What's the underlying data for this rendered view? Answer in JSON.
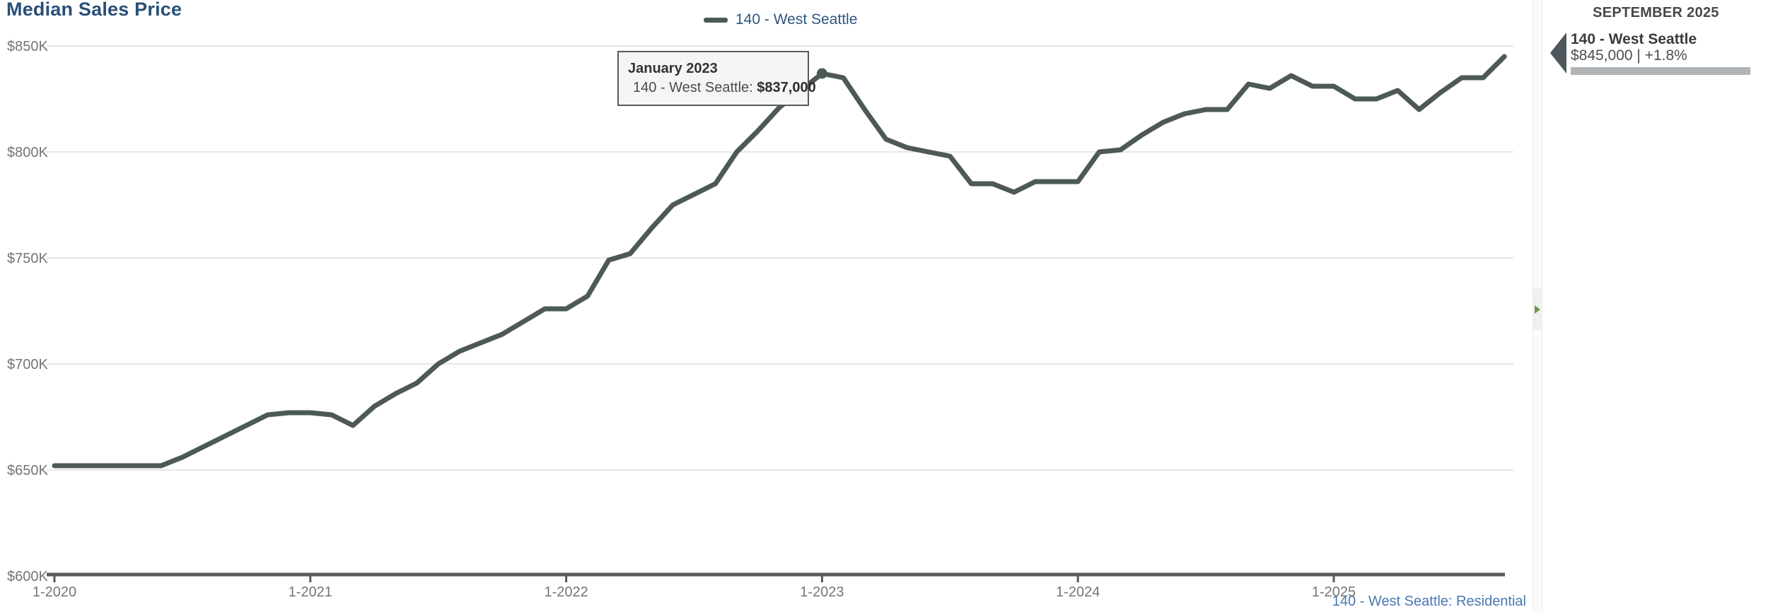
{
  "page": {
    "title": "Median Sales Price"
  },
  "legend": {
    "label": "140 - West Seattle",
    "swatch_icon": "line-swatch"
  },
  "tooltip": {
    "title": "January 2023",
    "series_label": "140 - West Seattle:",
    "value": "$837,000"
  },
  "side_panel": {
    "header": "SEPTEMBER 2025",
    "series_name": "140 - West Seattle",
    "value_line": "$845,000 | +1.8%",
    "arrow_icon": "left-triangle-icon",
    "bar_icon": "series-bar"
  },
  "divider": {
    "toggle_icon": "expand-right-icon"
  },
  "footer_link": {
    "label": "140 - West Seattle: Residential"
  },
  "colors": {
    "accent_blue": "#2a4f77",
    "legend_blue": "#2e567c",
    "link_blue": "#4a77b4",
    "line_color": "#4c5957",
    "grid_color": "#cccccc",
    "axis_color": "#595959",
    "label_gray": "#757575",
    "tooltip_bg": "#f5f5f3",
    "tooltip_border": "#58595a",
    "panel_bar_gray": "#b0b4b6",
    "toggle_green": "#6f9648"
  },
  "chart_data": {
    "type": "line",
    "title": "Median Sales Price",
    "xlabel": "",
    "ylabel": "",
    "grid": true,
    "legend_position": "top-center",
    "x_unit": "month",
    "x_range": "January 2020 to September 2025",
    "ylim": [
      600000,
      850000
    ],
    "y_ticks": [
      {
        "label": "$850K",
        "value": 850000
      },
      {
        "label": "$800K",
        "value": 800000
      },
      {
        "label": "$750K",
        "value": 750000
      },
      {
        "label": "$700K",
        "value": 700000
      },
      {
        "label": "$650K",
        "value": 650000
      },
      {
        "label": "$600K",
        "value": 600000
      }
    ],
    "x_ticks": [
      {
        "label": "1-2020",
        "month_index": 0
      },
      {
        "label": "1-2021",
        "month_index": 12
      },
      {
        "label": "1-2022",
        "month_index": 24
      },
      {
        "label": "1-2023",
        "month_index": 36
      },
      {
        "label": "1-2024",
        "month_index": 48
      },
      {
        "label": "1-2025",
        "month_index": 60
      }
    ],
    "series": [
      {
        "name": "140 - West Seattle",
        "values": [
          652000,
          652000,
          652000,
          652000,
          652000,
          652000,
          656000,
          661000,
          666000,
          671000,
          676000,
          677000,
          677000,
          676000,
          671000,
          680000,
          686000,
          691000,
          700000,
          706000,
          710000,
          714000,
          720000,
          726000,
          726000,
          732000,
          749000,
          752000,
          764000,
          775000,
          780000,
          785000,
          800000,
          810000,
          821000,
          829000,
          837000,
          835000,
          820000,
          806000,
          802000,
          800000,
          798000,
          785000,
          785000,
          781000,
          786000,
          786000,
          786000,
          800000,
          801000,
          808000,
          814000,
          818000,
          820000,
          820000,
          832000,
          830000,
          836000,
          831000,
          831000,
          825000,
          825000,
          829000,
          820000,
          828000,
          835000,
          835000,
          845000
        ]
      }
    ],
    "marker": {
      "series": "140 - West Seattle",
      "month_index": 36,
      "value": 837000
    }
  }
}
